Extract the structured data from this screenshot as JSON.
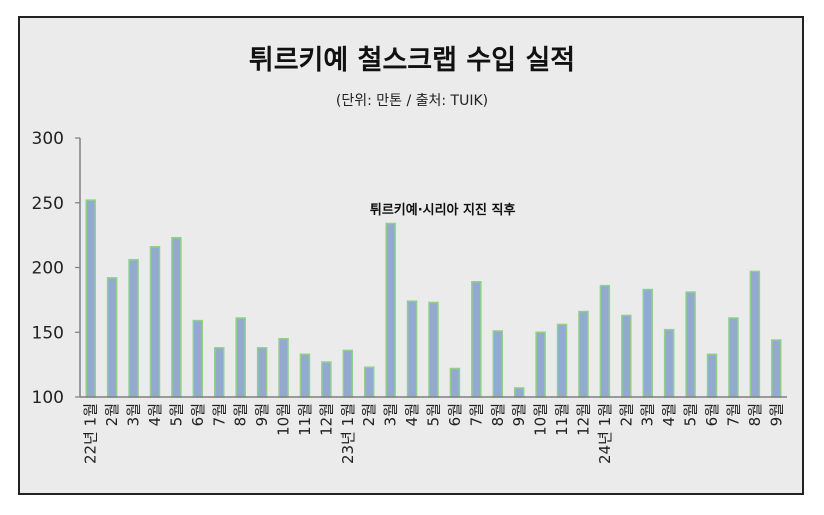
{
  "chart_data": {
    "type": "bar",
    "title": "튀르키예 철스크랩 수입 실적",
    "subtitle": "(단위: 만톤 / 출처: TUIK)",
    "xlabel": "",
    "ylabel": "",
    "ylim": [
      100,
      300
    ],
    "yticks": [
      100,
      150,
      200,
      250,
      300
    ],
    "month_unit": "월",
    "categories": [
      "1",
      "2",
      "3",
      "4",
      "5",
      "6",
      "7",
      "8",
      "9",
      "10",
      "11",
      "12",
      "1",
      "2",
      "3",
      "4",
      "5",
      "6",
      "7",
      "8",
      "9",
      "10",
      "11",
      "12",
      "1",
      "2",
      "3",
      "4",
      "5",
      "6",
      "7",
      "8",
      "9"
    ],
    "year_labels": [
      {
        "index": 0,
        "label": "22년"
      },
      {
        "index": 12,
        "label": "23년"
      },
      {
        "index": 24,
        "label": "24년"
      }
    ],
    "values": [
      252,
      192,
      206,
      216,
      223,
      159,
      138,
      161,
      138,
      145,
      133,
      127,
      136,
      123,
      234,
      174,
      173,
      122,
      189,
      151,
      107,
      150,
      156,
      166,
      186,
      163,
      183,
      152,
      181,
      133,
      161,
      197,
      144
    ],
    "annotation": {
      "text": "튀르키예·시리아 지진 직후",
      "index": 14
    },
    "colors": {
      "bar_fill": "#93a9d0",
      "bar_stroke": "#8fd18b",
      "background": "#ebebeb",
      "grid_axis": "#7f7f7f"
    }
  }
}
